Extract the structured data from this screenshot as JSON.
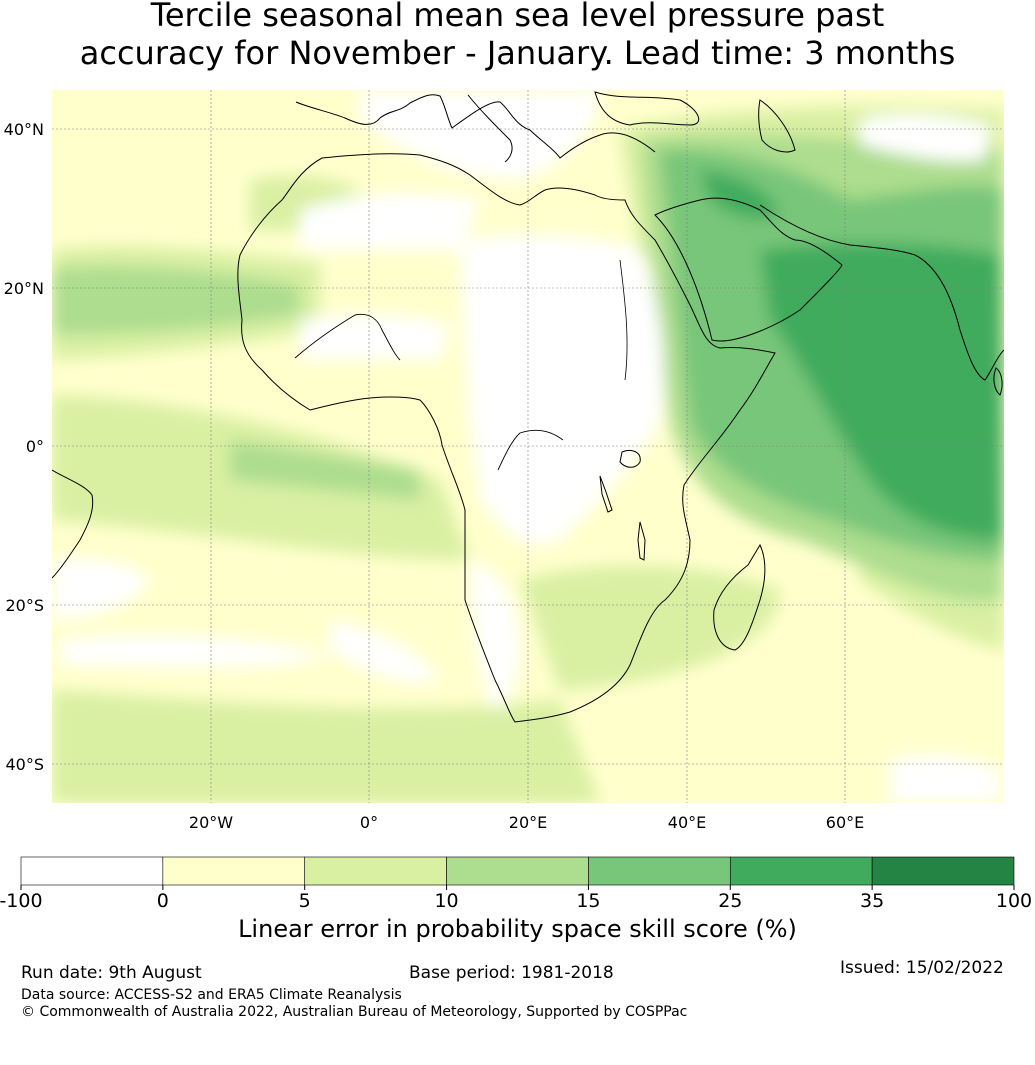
{
  "title": {
    "line1": "Tercile seasonal mean sea level pressure past",
    "line2": "accuracy for November - January. Lead time: 3 months"
  },
  "map": {
    "lat_ticks": [
      "40°N",
      "20°N",
      "0°",
      "20°S",
      "40°S"
    ],
    "lon_ticks": [
      "20°W",
      "0°",
      "20°E",
      "40°E",
      "60°E"
    ]
  },
  "colorbar": {
    "ticks": [
      "-100",
      "0",
      "5",
      "10",
      "15",
      "25",
      "35",
      "100"
    ],
    "colors": [
      "#ffffff",
      "#ffffcc",
      "#d9f0a3",
      "#addd8e",
      "#78c679",
      "#41ab5d",
      "#238443"
    ],
    "label": "Linear error in probability space skill score (%)"
  },
  "footer": {
    "run_date": "Run date: 9th August",
    "base_period": "Base period: 1981-2018",
    "issued": "Issued: 15/02/2022",
    "data_source": "Data source: ACCESS-S2 and ERA5 Climate Reanalysis",
    "copyright": "© Commonwealth of Australia 2022, Australian Bureau of Meteorology, Supported by COSPPac"
  }
}
